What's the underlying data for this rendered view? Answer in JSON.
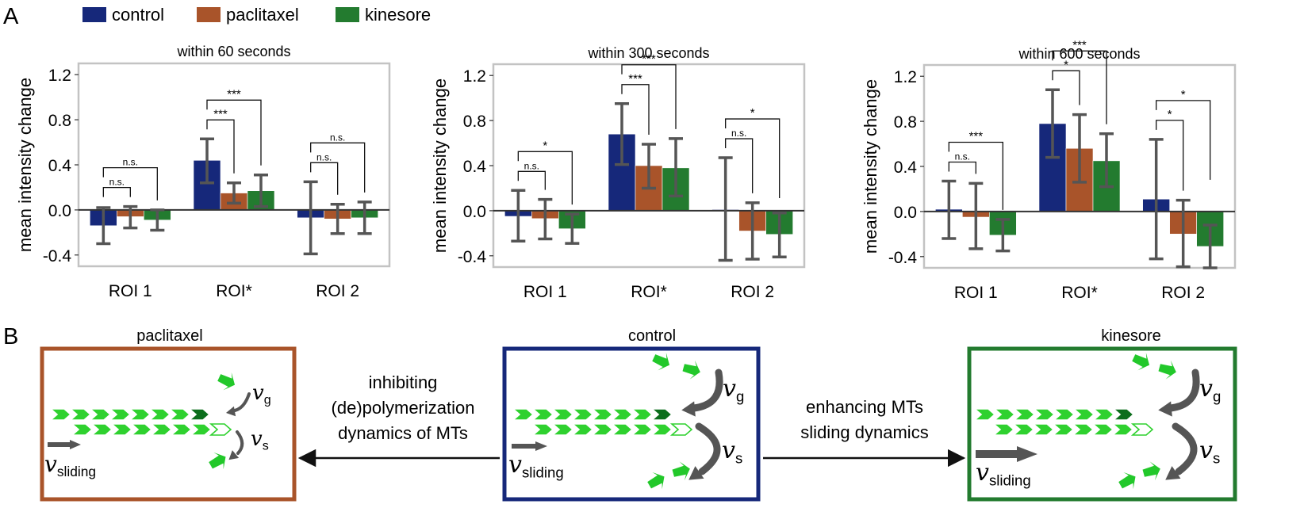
{
  "panel_letters": {
    "a": "A",
    "b": "B"
  },
  "legend": [
    {
      "name": "control",
      "color": "#16287a"
    },
    {
      "name": "paclitaxel",
      "color": "#a9542a"
    },
    {
      "name": "kinesore",
      "color": "#237b2f"
    }
  ],
  "chart_data": [
    {
      "type": "bar",
      "title": "within 60 seconds",
      "ylabel": "mean intensity change",
      "ylim": [
        -0.5,
        1.3
      ],
      "yticks": [
        -0.4,
        0.0,
        0.4,
        0.8,
        1.2
      ],
      "ytick_labels": [
        "-0.4",
        "0.0",
        "0.4",
        "0.8",
        "1.2"
      ],
      "categories": [
        "ROI 1",
        "ROI*",
        "ROI 2"
      ],
      "series": [
        {
          "name": "control",
          "values": [
            -0.14,
            0.44,
            -0.07
          ],
          "err_low": [
            -0.3,
            0.24,
            -0.39
          ],
          "err_high": [
            0.02,
            0.63,
            0.25
          ]
        },
        {
          "name": "paclitaxel",
          "values": [
            -0.06,
            0.15,
            -0.08
          ],
          "err_low": [
            -0.16,
            0.06,
            -0.21
          ],
          "err_high": [
            0.03,
            0.24,
            0.05
          ]
        },
        {
          "name": "kinesore",
          "values": [
            -0.09,
            0.17,
            -0.07
          ],
          "err_low": [
            -0.18,
            0.03,
            -0.21
          ],
          "err_high": [
            0.0,
            0.31,
            0.07
          ]
        }
      ],
      "significance": [
        {
          "category": 0,
          "from": 0,
          "to": 1,
          "label": "n.s."
        },
        {
          "category": 0,
          "from": 0,
          "to": 2,
          "label": "n.s."
        },
        {
          "category": 1,
          "from": 0,
          "to": 1,
          "label": "***"
        },
        {
          "category": 1,
          "from": 0,
          "to": 2,
          "label": "***"
        },
        {
          "category": 2,
          "from": 0,
          "to": 1,
          "label": "n.s."
        },
        {
          "category": 2,
          "from": 0,
          "to": 2,
          "label": "n.s."
        }
      ]
    },
    {
      "type": "bar",
      "title": "within 300 seconds",
      "ylabel": "mean intensity change",
      "ylim": [
        -0.5,
        1.3
      ],
      "yticks": [
        -0.4,
        0.0,
        0.4,
        0.8,
        1.2
      ],
      "ytick_labels": [
        "-0.4",
        "0.0",
        "0.4",
        "0.8",
        "1.2"
      ],
      "categories": [
        "ROI 1",
        "ROI*",
        "ROI 2"
      ],
      "series": [
        {
          "name": "control",
          "values": [
            -0.05,
            0.68,
            0.01
          ],
          "err_low": [
            -0.27,
            0.41,
            -0.44
          ],
          "err_high": [
            0.18,
            0.95,
            0.47
          ]
        },
        {
          "name": "paclitaxel",
          "values": [
            -0.07,
            0.4,
            -0.18
          ],
          "err_low": [
            -0.25,
            0.2,
            -0.43
          ],
          "err_high": [
            0.1,
            0.59,
            0.07
          ]
        },
        {
          "name": "kinesore",
          "values": [
            -0.16,
            0.38,
            -0.21
          ],
          "err_low": [
            -0.29,
            0.13,
            -0.41
          ],
          "err_high": [
            -0.03,
            0.64,
            -0.02
          ]
        }
      ],
      "significance": [
        {
          "category": 0,
          "from": 0,
          "to": 1,
          "label": "n.s."
        },
        {
          "category": 0,
          "from": 0,
          "to": 2,
          "label": "*"
        },
        {
          "category": 1,
          "from": 0,
          "to": 1,
          "label": "***"
        },
        {
          "category": 1,
          "from": 0,
          "to": 2,
          "label": "***"
        },
        {
          "category": 2,
          "from": 0,
          "to": 1,
          "label": "n.s."
        },
        {
          "category": 2,
          "from": 0,
          "to": 2,
          "label": "*"
        }
      ]
    },
    {
      "type": "bar",
      "title": "within 600 seconds",
      "ylabel": "mean intensity change",
      "ylim": [
        -0.5,
        1.3
      ],
      "yticks": [
        -0.4,
        0.0,
        0.4,
        0.8,
        1.2
      ],
      "ytick_labels": [
        "-0.4",
        "0.0",
        "0.4",
        "0.8",
        "1.2"
      ],
      "categories": [
        "ROI 1",
        "ROI*",
        "ROI 2"
      ],
      "series": [
        {
          "name": "control",
          "values": [
            0.02,
            0.78,
            0.11
          ],
          "err_low": [
            -0.24,
            0.48,
            -0.42
          ],
          "err_high": [
            0.27,
            1.08,
            0.64
          ]
        },
        {
          "name": "paclitaxel",
          "values": [
            -0.05,
            0.56,
            -0.2
          ],
          "err_low": [
            -0.33,
            0.26,
            -0.49
          ],
          "err_high": [
            0.25,
            0.86,
            0.1
          ]
        },
        {
          "name": "kinesore",
          "values": [
            -0.21,
            0.45,
            -0.31
          ],
          "err_low": [
            -0.35,
            0.22,
            -0.5
          ],
          "err_high": [
            -0.07,
            0.69,
            -0.12
          ]
        }
      ],
      "significance": [
        {
          "category": 0,
          "from": 0,
          "to": 1,
          "label": "n.s."
        },
        {
          "category": 0,
          "from": 0,
          "to": 2,
          "label": "***"
        },
        {
          "category": 1,
          "from": 0,
          "to": 1,
          "label": "*"
        },
        {
          "category": 1,
          "from": 0,
          "to": 2,
          "label": "***"
        },
        {
          "category": 2,
          "from": 0,
          "to": 1,
          "label": "*"
        },
        {
          "category": 2,
          "from": 0,
          "to": 2,
          "label": "*"
        }
      ]
    }
  ],
  "diagram": {
    "boxes": [
      {
        "key": "paclitaxel",
        "title": "paclitaxel",
        "border_color": "#a9542a"
      },
      {
        "key": "control",
        "title": "control",
        "border_color": "#16287a"
      },
      {
        "key": "kinesore",
        "title": "kinesore",
        "border_color": "#237b2f"
      }
    ],
    "arrow_left_lines": [
      "inhibiting",
      "(de)polymerization",
      "dynamics of MTs"
    ],
    "arrow_right_lines": [
      "enhancing MTs",
      "sliding dynamics"
    ],
    "symbols": {
      "v": "v",
      "sub_g": "g",
      "sub_s": "s",
      "sub_sliding": "sliding"
    },
    "colors": {
      "mt_light": "#2fd12f",
      "mt_dark": "#0c6e1c",
      "arrow_gray": "#555555",
      "tubulin": "#22c82a"
    }
  }
}
